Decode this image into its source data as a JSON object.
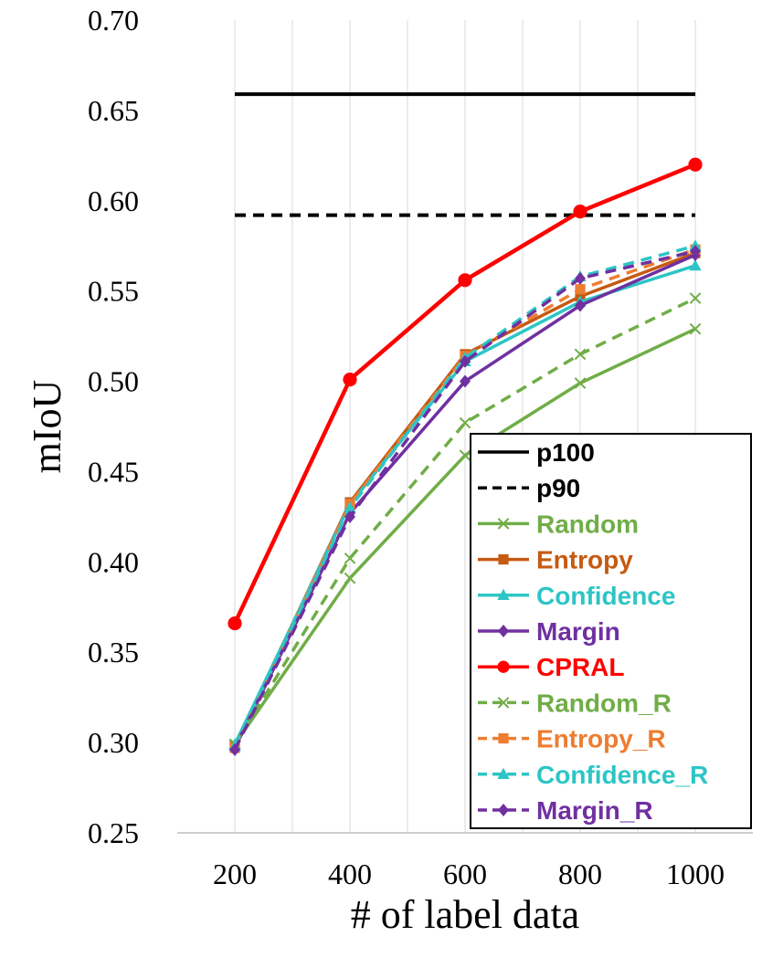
{
  "chart_data": {
    "type": "line",
    "xlabel": "# of label data",
    "ylabel": "mIoU",
    "categories": [
      "200",
      "400",
      "600",
      "800",
      "1000"
    ],
    "ylim": [
      0.25,
      0.7
    ],
    "yticks": [
      "0.25",
      "0.30",
      "0.35",
      "0.40",
      "0.45",
      "0.50",
      "0.55",
      "0.60",
      "0.65",
      "0.70"
    ],
    "grid": "vertical",
    "legend_position": "bottom-right",
    "reference_lines": [
      {
        "name": "p100",
        "value": 0.659,
        "color": "#000000",
        "dash": "solid"
      },
      {
        "name": "p90",
        "value": 0.592,
        "color": "#000000",
        "dash": "dashed"
      }
    ],
    "series": [
      {
        "name": "Random",
        "color": "#70AD47",
        "dash": "solid",
        "marker": "x",
        "values": [
          0.299,
          0.391,
          0.459,
          0.499,
          0.529
        ]
      },
      {
        "name": "Entropy",
        "color": "#C55A11",
        "dash": "solid",
        "marker": "square",
        "values": [
          0.298,
          0.433,
          0.515,
          0.547,
          0.571
        ]
      },
      {
        "name": "Confidence",
        "color": "#2DC5C5",
        "dash": "solid",
        "marker": "triangle",
        "values": [
          0.299,
          0.432,
          0.511,
          0.544,
          0.564
        ]
      },
      {
        "name": "Margin",
        "color": "#7030A0",
        "dash": "solid",
        "marker": "diamond",
        "values": [
          0.297,
          0.427,
          0.5,
          0.542,
          0.57
        ]
      },
      {
        "name": "CPRAL",
        "color": "#FF0000",
        "dash": "solid",
        "marker": "circle",
        "values": [
          0.366,
          0.501,
          0.556,
          0.594,
          0.62
        ]
      },
      {
        "name": "Random_R",
        "color": "#70AD47",
        "dash": "dashed",
        "marker": "x",
        "values": [
          0.299,
          0.402,
          0.477,
          0.515,
          0.546
        ]
      },
      {
        "name": "Entropy_R",
        "color": "#ED7D31",
        "dash": "dashed",
        "marker": "square",
        "values": [
          0.297,
          0.432,
          0.514,
          0.551,
          0.573
        ]
      },
      {
        "name": "Confidence_R",
        "color": "#2DC5C5",
        "dash": "dashed",
        "marker": "triangle",
        "values": [
          0.298,
          0.43,
          0.513,
          0.558,
          0.575
        ]
      },
      {
        "name": "Margin_R",
        "color": "#7030A0",
        "dash": "dashed",
        "marker": "diamond",
        "values": [
          0.296,
          0.425,
          0.511,
          0.557,
          0.572
        ]
      }
    ]
  }
}
